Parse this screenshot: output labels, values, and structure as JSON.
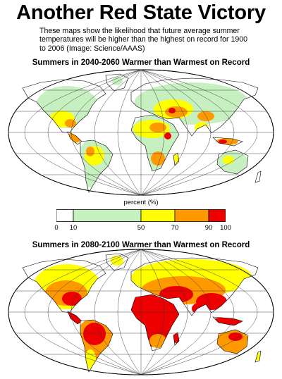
{
  "headline": "Another Red State Victory",
  "caption": "These maps show the likelihood that future average summer temperatures will be higher than the highest on record for 1900 to 2006 (Image: Science/AAAS)",
  "map1": {
    "title": "Summers in 2040-2060 Warmer than Warmest on Record"
  },
  "map2": {
    "title": "Summers in 2080-2100 Warmer than Warmest on Record"
  },
  "legend": {
    "title": "percent (%)",
    "ticks": [
      "0",
      "10",
      "50",
      "70",
      "90",
      "100"
    ],
    "bins": [
      {
        "from": 0,
        "to": 10,
        "color": "#ffffff"
      },
      {
        "from": 10,
        "to": 50,
        "color": "#c6f0c0"
      },
      {
        "from": 50,
        "to": 70,
        "color": "#ffff00"
      },
      {
        "from": 70,
        "to": 90,
        "color": "#ff9900"
      },
      {
        "from": 90,
        "to": 100,
        "color": "#ee0000"
      }
    ]
  },
  "colors": {
    "land_outline": "#000000",
    "graticule": "#333333",
    "ocean": "#ffffff"
  }
}
